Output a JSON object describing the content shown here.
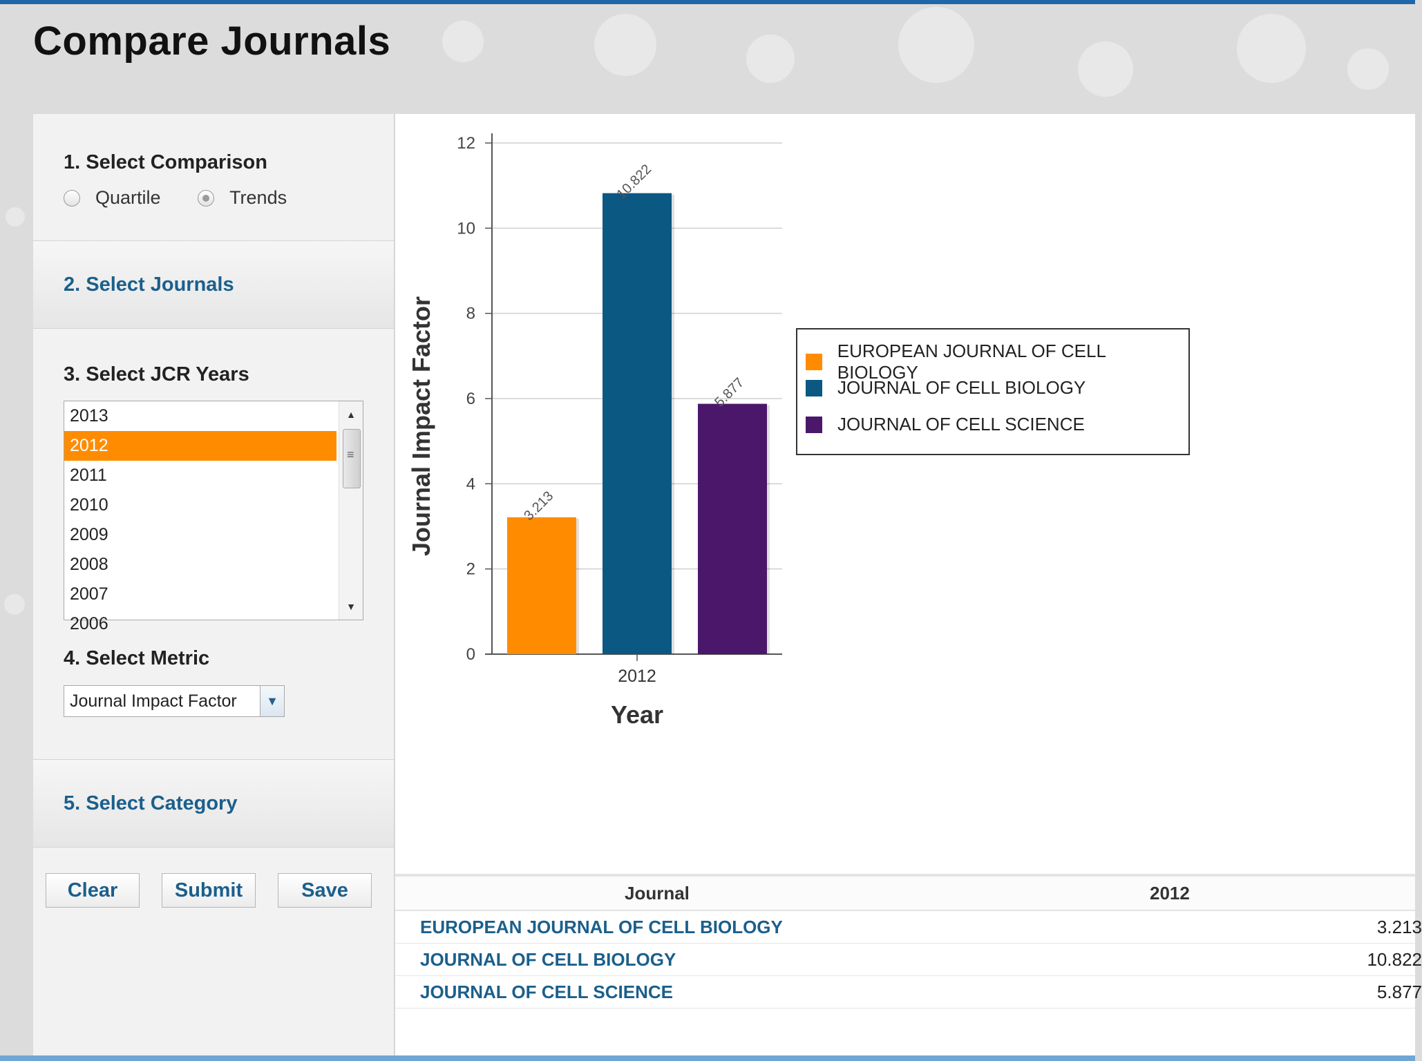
{
  "page": {
    "title": "Compare Journals"
  },
  "panel": {
    "step1": {
      "title": "1. Select Comparison",
      "options": [
        {
          "label": "Quartile",
          "checked": false
        },
        {
          "label": "Trends",
          "checked": true
        }
      ]
    },
    "step2": {
      "title": "2. Select Journals"
    },
    "step3": {
      "title": "3. Select JCR Years",
      "years": [
        "2013",
        "2012",
        "2011",
        "2010",
        "2009",
        "2008",
        "2007",
        "2006"
      ],
      "selected": "2012"
    },
    "step4": {
      "title": "4. Select Metric",
      "selected": "Journal Impact Factor"
    },
    "step5": {
      "title": "5. Select Category"
    },
    "buttons": {
      "clear": "Clear",
      "submit": "Submit",
      "save": "Save"
    }
  },
  "chart_data": {
    "type": "bar",
    "categories": [
      "2012"
    ],
    "series": [
      {
        "name": "EUROPEAN JOURNAL OF CELL BIOLOGY",
        "values": [
          3.213
        ],
        "color": "#ff8c00",
        "label": "3.213"
      },
      {
        "name": "JOURNAL OF CELL BIOLOGY",
        "values": [
          10.822
        ],
        "color": "#0b5882",
        "label": "10.822"
      },
      {
        "name": "JOURNAL OF CELL SCIENCE",
        "values": [
          5.877
        ],
        "color": "#4b176a",
        "label": "5.877"
      }
    ],
    "xlabel": "Year",
    "ylabel": "Journal Impact Factor",
    "ylim": [
      0,
      12
    ],
    "yticks": [
      "0",
      "2",
      "4",
      "6",
      "8",
      "10",
      "12"
    ],
    "grid": true,
    "legend_position": "right"
  },
  "table": {
    "headers": {
      "journal": "Journal",
      "year": "2012"
    },
    "rows": [
      {
        "journal": "EUROPEAN JOURNAL OF CELL BIOLOGY",
        "value": "3.213"
      },
      {
        "journal": "JOURNAL OF CELL BIOLOGY",
        "value": "10.822"
      },
      {
        "journal": "JOURNAL OF CELL SCIENCE",
        "value": "5.877"
      }
    ]
  }
}
